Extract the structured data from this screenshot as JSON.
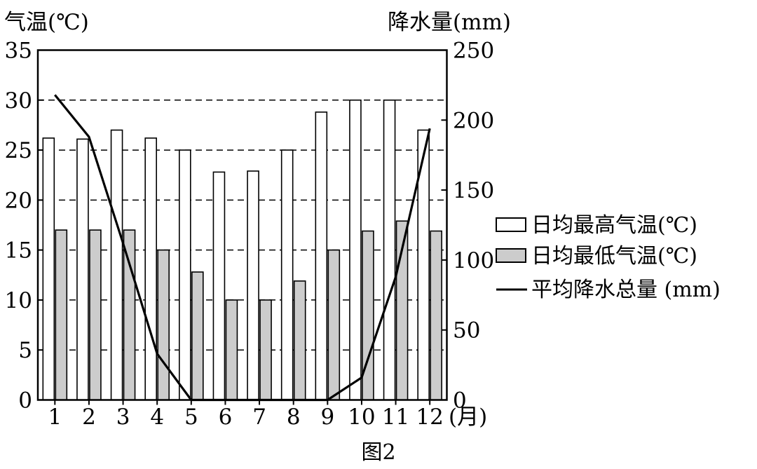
{
  "figure_label": "图2",
  "chart_data": {
    "type": "bar",
    "categories": [
      "1",
      "2",
      "3",
      "4",
      "5",
      "6",
      "7",
      "8",
      "9",
      "10",
      "11",
      "12"
    ],
    "x_unit": "(月)",
    "left_axis": {
      "label": "气温(℃)",
      "range": [
        0,
        35
      ],
      "ticks": [
        0,
        5,
        10,
        15,
        20,
        25,
        30,
        35
      ]
    },
    "right_axis": {
      "label": "降水量(mm)",
      "range": [
        0,
        250
      ],
      "ticks": [
        0,
        50,
        100,
        150,
        200,
        250
      ]
    },
    "grid": "dashed horizontal",
    "legend_placement": "right",
    "series": [
      {
        "name": "日均最高气温(℃)",
        "type": "bar",
        "axis": "left",
        "color": "#ffffff",
        "values": [
          26.2,
          26.1,
          27.0,
          26.2,
          25.0,
          22.8,
          22.9,
          25.0,
          28.8,
          30.0,
          30.0,
          27.0
        ]
      },
      {
        "name": "日均最低气温(℃)",
        "type": "bar",
        "axis": "left",
        "color": "#cccccc",
        "values": [
          17.0,
          17.0,
          17.0,
          15.0,
          12.8,
          10.0,
          10.0,
          11.9,
          15.0,
          16.9,
          17.9,
          16.9
        ]
      },
      {
        "name": "平均降水总量 (mm)",
        "type": "line",
        "axis": "right",
        "color": "#000000",
        "values": [
          218,
          188,
          112,
          33,
          0,
          0,
          0,
          0,
          0,
          16,
          88,
          194
        ]
      }
    ]
  }
}
